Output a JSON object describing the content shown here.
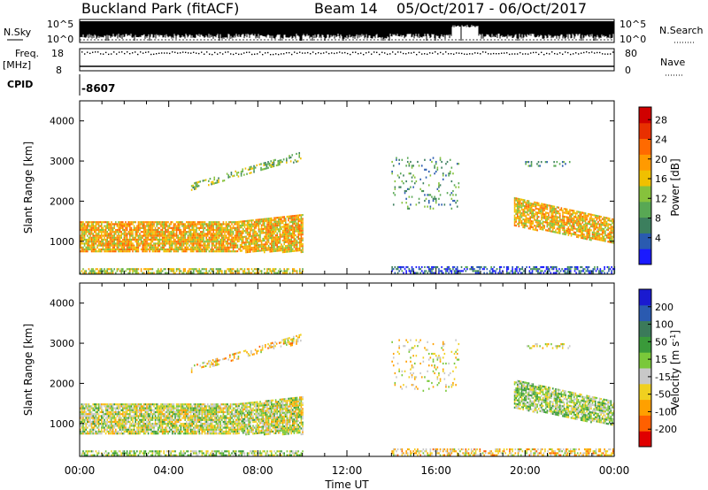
{
  "header": {
    "station": "Buckland Park (fitACF)",
    "beam": "Beam 14",
    "date_range": "05/Oct/2017 - 06/Oct/2017"
  },
  "noise_panel": {
    "label_left": "N.Sky",
    "label_right": "N.Search",
    "tick_top_left": "10^5",
    "tick_bottom_left": "10^0",
    "tick_top_right": "10^5",
    "tick_bottom_right": "10^0"
  },
  "freq_panel": {
    "label_left_1": "Freq.",
    "label_left_2": "[MHz]",
    "label_right": "Nave",
    "tick_top_left": "18",
    "tick_bottom_left": "8",
    "tick_top_right": "80",
    "tick_bottom_right": "0"
  },
  "cpid_panel": {
    "label": "CPID",
    "value": "-8607"
  },
  "chart_data": [
    {
      "type": "heatmap",
      "parameter": "power",
      "ylabel": "Slant Range [km]",
      "ylim": [
        180,
        4500
      ],
      "y_ticks": [
        "1000",
        "2000",
        "3000",
        "4000"
      ],
      "x_ticks": [
        "00:00",
        "04:00",
        "08:00",
        "12:00",
        "16:00",
        "20:00",
        "00:00"
      ],
      "colorbar": {
        "label": "Power [dB]",
        "ticks": [
          "4",
          "8",
          "12",
          "16",
          "20",
          "24",
          "28"
        ],
        "colors": [
          "#1a1aff",
          "#2a5bb0",
          "#3c7f5e",
          "#58a854",
          "#86c23c",
          "#f0c000",
          "#ff9a00",
          "#ff6a00",
          "#e83000",
          "#d00000"
        ]
      }
    },
    {
      "type": "heatmap",
      "parameter": "velocity",
      "ylabel": "Slant Range [km]",
      "ylim": [
        180,
        4500
      ],
      "y_ticks": [
        "1000",
        "2000",
        "3000",
        "4000"
      ],
      "x_ticks": [
        "00:00",
        "04:00",
        "08:00",
        "12:00",
        "16:00",
        "20:00",
        "00:00"
      ],
      "xlabel": "Time UT",
      "colorbar": {
        "label": "Velocity [m s",
        "label_exp": "-1",
        "label_end": "]",
        "ticks": [
          "200",
          "100",
          "50",
          "15",
          "-15",
          "-50",
          "-100",
          "-200"
        ],
        "colors": [
          "#1a1ad0",
          "#2a5ab0",
          "#3b7a5a",
          "#3a9a3a",
          "#7ac83a",
          "#c8c8c8",
          "#f0d020",
          "#ffa000",
          "#ff6000",
          "#e00000"
        ]
      }
    }
  ]
}
